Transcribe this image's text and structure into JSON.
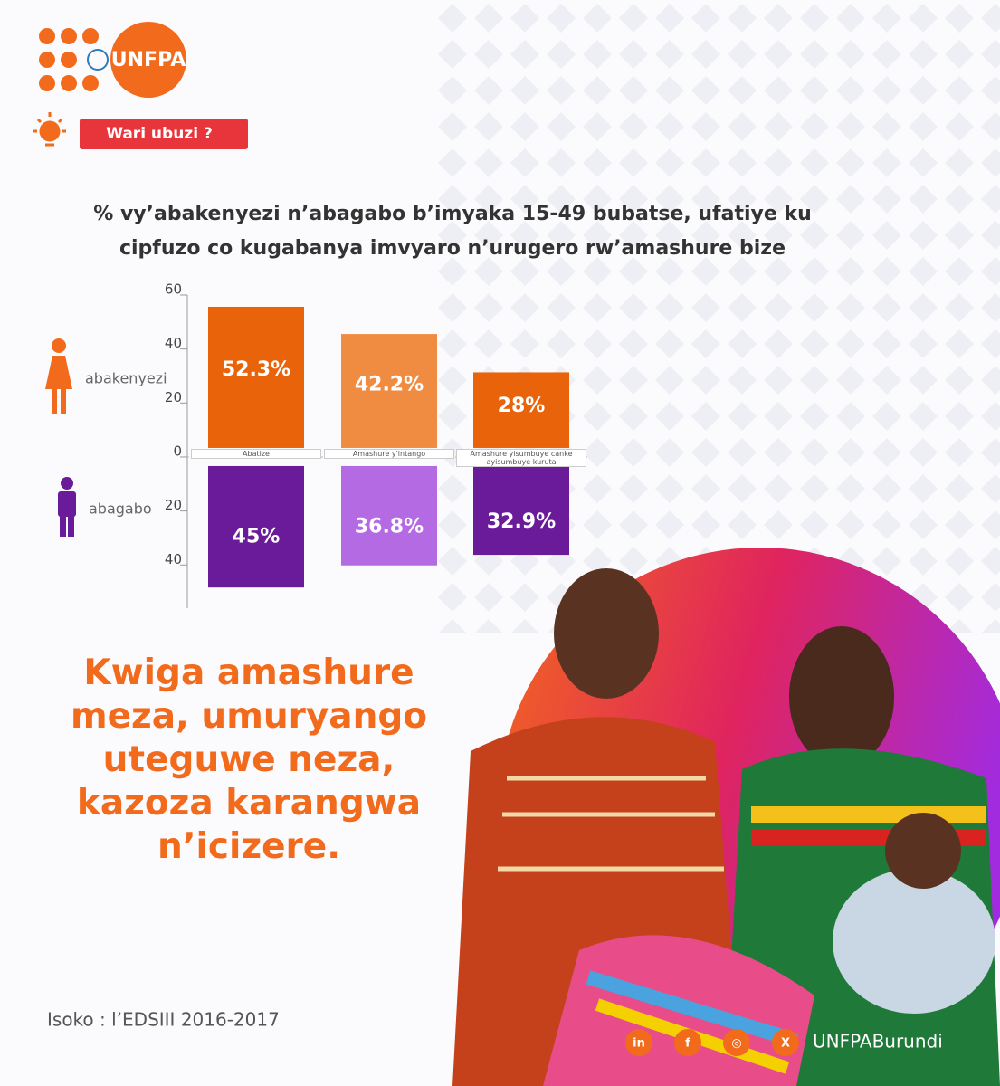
{
  "header": {
    "logo": "UNFPA",
    "badge": "Wari ubuzi ?"
  },
  "chart_data": {
    "type": "bar",
    "title": "% vy’abakenyezi n’abagabo b’imyaka 15-49 bubatse, ufatiye ku cipfuzo co kugabanya imvyaro n’urugero rw’amashure bize",
    "categories": [
      "Abatize",
      "Amashure y'intango",
      "Amashure yisumbuye canke ayisumbuye kuruta"
    ],
    "series": [
      {
        "name": "abakenyezi",
        "colors": [
          "#e8630a",
          "#f08c42",
          "#e8630a"
        ],
        "values": [
          52.3,
          42.2,
          28
        ],
        "value_labels": [
          "52.3%",
          "42.2%",
          "28%"
        ]
      },
      {
        "name": "abagabo",
        "colors": [
          "#6a1b9a",
          "#b46ae2",
          "#6a1b9a"
        ],
        "values": [
          45,
          36.8,
          32.9
        ],
        "value_labels": [
          "45%",
          "36.8%",
          "32.9%"
        ]
      }
    ],
    "ylim": [
      -56,
      60
    ],
    "yticks": [
      60,
      40,
      20,
      0,
      {
        "value": -20,
        "label": "20"
      },
      {
        "value": -40,
        "label": "40"
      }
    ]
  },
  "slogan": "Kwiga amashure meza, umuryango uteguwe neza, kazoza karangwa n’icizere.",
  "source": "Isoko : l’EDSIII 2016-2017",
  "social": {
    "handle": "UNFPABurundi",
    "icons": [
      "in",
      "f",
      "◎",
      "X"
    ]
  }
}
